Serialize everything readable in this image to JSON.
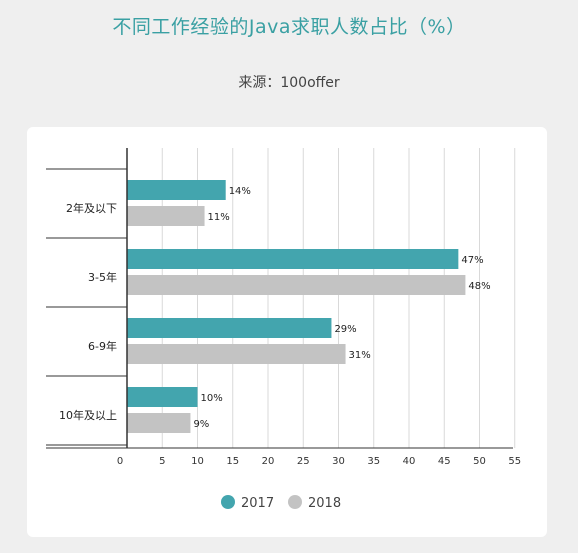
{
  "title": "不同工作经验的Java求职人数占比（%）",
  "subtitle": "来源：100offer",
  "colors": {
    "s2017": "#43a5ae",
    "s2018": "#c3c3c3"
  },
  "chart_data": {
    "type": "bar",
    "orientation": "horizontal",
    "title": "不同工作经验的Java求职人数占比（%）",
    "subtitle": "来源：100offer",
    "categories": [
      "2年及以下",
      "3-5年",
      "6-9年",
      "10年及以上"
    ],
    "series": [
      {
        "name": "2017",
        "values": [
          14,
          47,
          29,
          10
        ],
        "labels": [
          "14%",
          "47%",
          "29%",
          "10%"
        ]
      },
      {
        "name": "2018",
        "values": [
          11,
          48,
          31,
          9
        ],
        "labels": [
          "11%",
          "48%",
          "31%",
          "9%"
        ]
      }
    ],
    "xticks": [
      "0",
      "5",
      "10",
      "15",
      "20",
      "25",
      "30",
      "35",
      "40",
      "45",
      "50",
      "55"
    ],
    "xlim": [
      0,
      55
    ],
    "grid": true,
    "legend": "bottom"
  }
}
